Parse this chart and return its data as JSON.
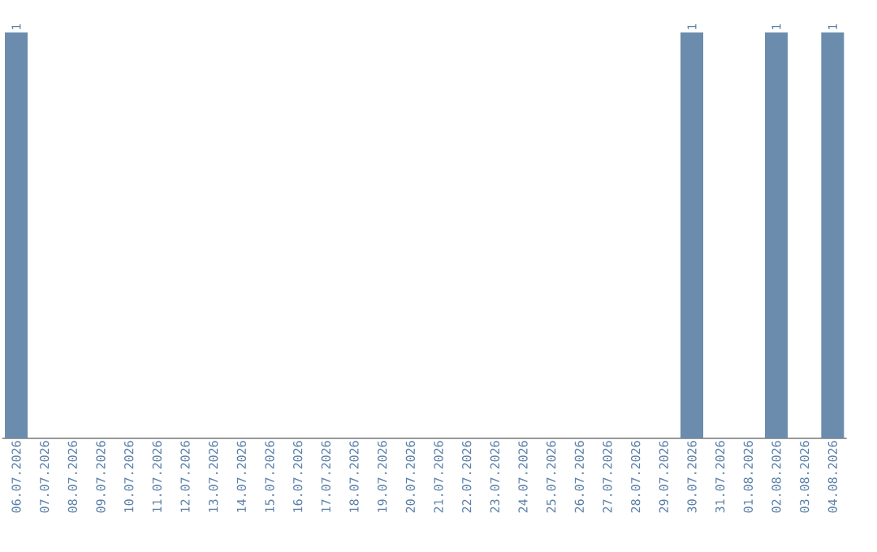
{
  "chart_data": {
    "type": "bar",
    "color": "#6b8cad",
    "categories": [
      "06.07.2026",
      "07.07.2026",
      "08.07.2026",
      "09.07.2026",
      "10.07.2026",
      "11.07.2026",
      "12.07.2026",
      "13.07.2026",
      "14.07.2026",
      "15.07.2026",
      "16.07.2026",
      "17.07.2026",
      "18.07.2026",
      "19.07.2026",
      "20.07.2026",
      "21.07.2026",
      "22.07.2026",
      "23.07.2026",
      "24.07.2026",
      "25.07.2026",
      "26.07.2026",
      "27.07.2026",
      "28.07.2026",
      "29.07.2026",
      "30.07.2026",
      "31.07.2026",
      "01.08.2026",
      "02.08.2026",
      "03.08.2026",
      "04.08.2026"
    ],
    "values": [
      1,
      0,
      0,
      0,
      0,
      0,
      0,
      0,
      0,
      0,
      0,
      0,
      0,
      0,
      0,
      0,
      0,
      0,
      0,
      0,
      0,
      0,
      0,
      0,
      1,
      0,
      0,
      1,
      0,
      1
    ],
    "value_labels": [
      "1",
      null,
      null,
      null,
      null,
      null,
      null,
      null,
      null,
      null,
      null,
      null,
      null,
      null,
      null,
      null,
      null,
      null,
      null,
      null,
      null,
      null,
      null,
      null,
      "1",
      null,
      null,
      "1",
      null,
      "1"
    ]
  }
}
